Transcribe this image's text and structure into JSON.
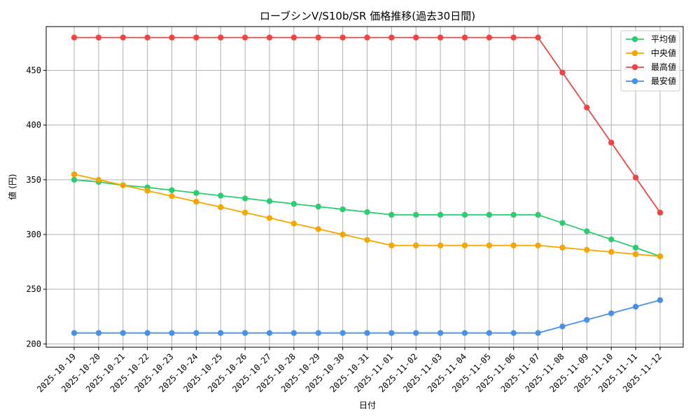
{
  "chart_data": {
    "type": "line",
    "title": "ローブシンV/S10b/SR 価格推移(過去30日間)",
    "xlabel": "日付",
    "ylabel": "値 (円)",
    "ylim": [
      197,
      490
    ],
    "yticks": [
      200,
      250,
      300,
      350,
      400,
      450
    ],
    "grid": true,
    "legend_position": "top-right",
    "categories": [
      "2025-10-19",
      "2025-10-20",
      "2025-10-21",
      "2025-10-22",
      "2025-10-23",
      "2025-10-24",
      "2025-10-25",
      "2025-10-26",
      "2025-10-27",
      "2025-10-28",
      "2025-10-29",
      "2025-10-30",
      "2025-10-31",
      "2025-11-01",
      "2025-11-02",
      "2025-11-03",
      "2025-11-04",
      "2025-11-05",
      "2025-11-06",
      "2025-11-07",
      "2025-11-08",
      "2025-11-09",
      "2025-11-10",
      "2025-11-11",
      "2025-11-12"
    ],
    "series": [
      {
        "name": "平均値",
        "color": "#2ecc71",
        "values": [
          350,
          348,
          345,
          343,
          340.5,
          338,
          335.5,
          333,
          330.5,
          328,
          325.5,
          323,
          320.5,
          318,
          318,
          318,
          318,
          318,
          318,
          318,
          310.5,
          303,
          295.5,
          288,
          280
        ]
      },
      {
        "name": "中央値",
        "color": "#f5a700",
        "values": [
          355,
          350,
          345,
          340,
          335,
          330,
          325,
          320,
          315,
          310,
          305,
          300,
          295,
          290,
          290,
          290,
          290,
          290,
          290,
          290,
          288,
          286,
          284,
          282,
          280
        ]
      },
      {
        "name": "最高値",
        "color": "#ef4444",
        "values": [
          480,
          480,
          480,
          480,
          480,
          480,
          480,
          480,
          480,
          480,
          480,
          480,
          480,
          480,
          480,
          480,
          480,
          480,
          480,
          480,
          448,
          416,
          384,
          352,
          320
        ]
      },
      {
        "name": "最安値",
        "color": "#4a90e8",
        "values": [
          210,
          210,
          210,
          210,
          210,
          210,
          210,
          210,
          210,
          210,
          210,
          210,
          210,
          210,
          210,
          210,
          210,
          210,
          210,
          210,
          216,
          222,
          228,
          234,
          240
        ]
      }
    ]
  }
}
